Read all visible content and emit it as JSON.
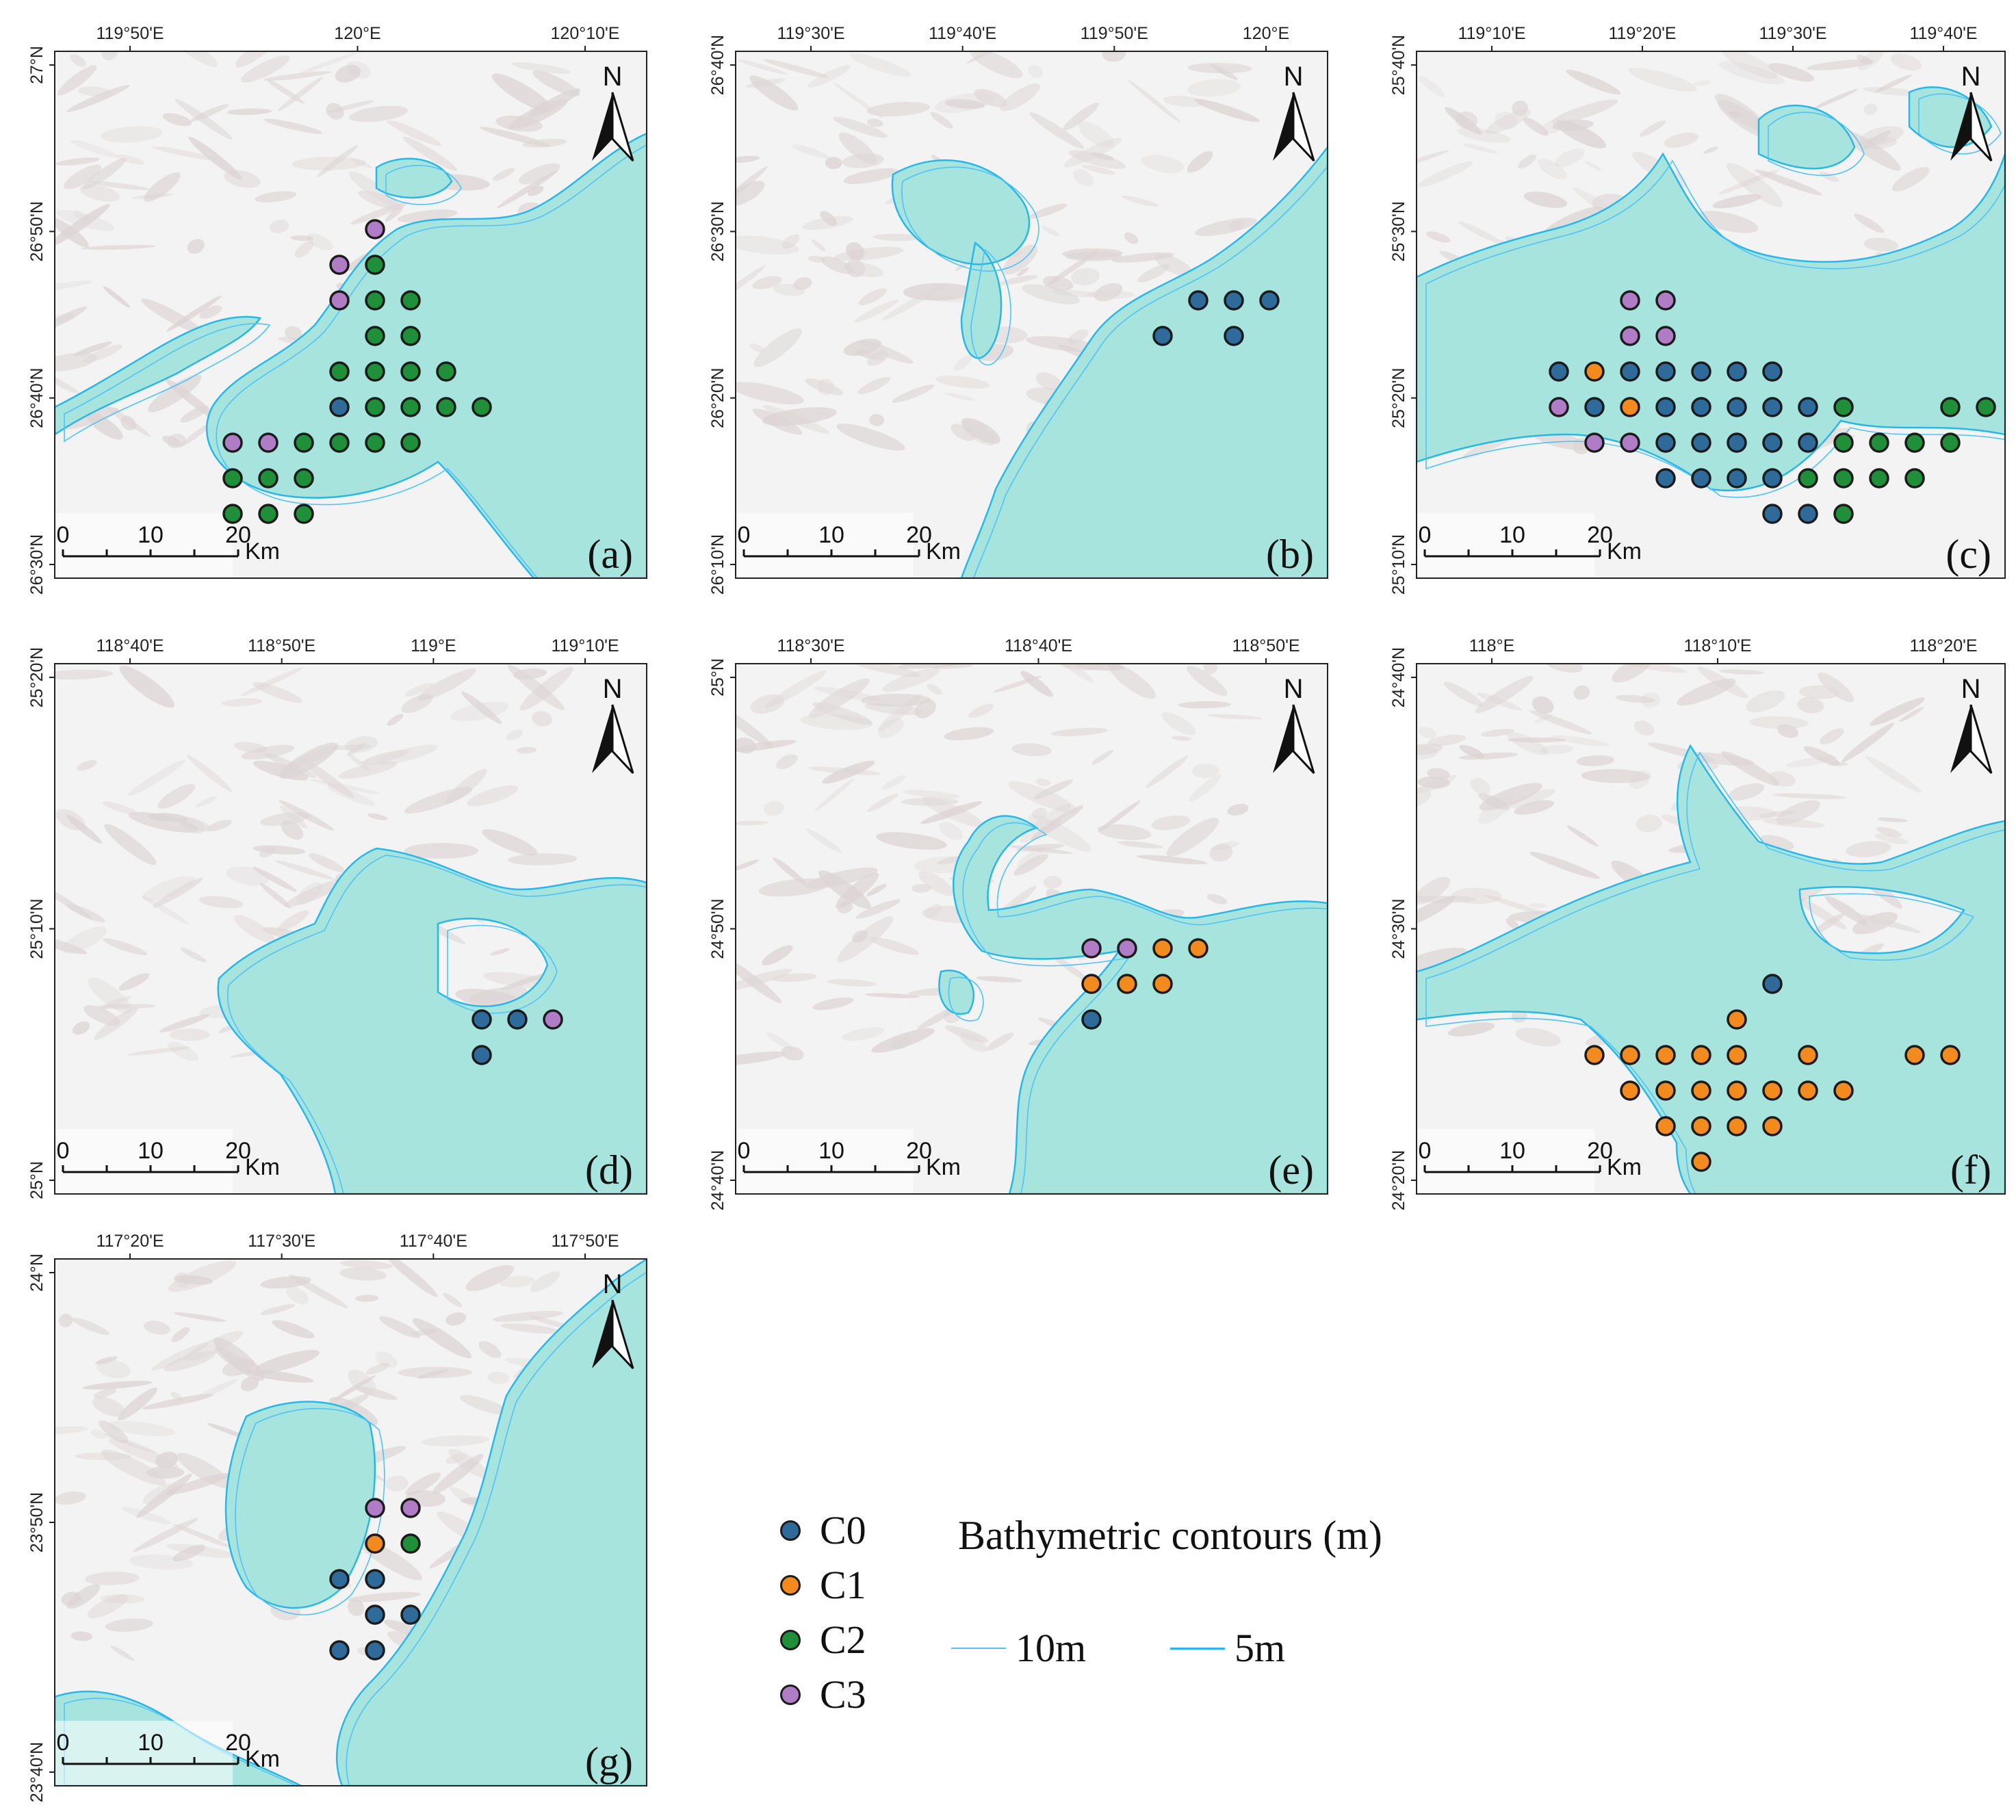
{
  "colors": {
    "C0": "#2f6b9a",
    "C1": "#f28a1e",
    "C2": "#1f8f3a",
    "C3": "#b07cc6",
    "sea": "#a8e4de",
    "contour": "#29b6e8",
    "land": "#f3f3f3",
    "relief": "#cbbcbc"
  },
  "scale_bar": {
    "ticks": [
      "0",
      "10",
      "20"
    ],
    "unit": "Km"
  },
  "north_label": "N",
  "legend": {
    "clusters": [
      "C0",
      "C1",
      "C2",
      "C3"
    ],
    "contour_title": "Bathymetric contours (m)",
    "contours": [
      "10m",
      "5m"
    ]
  },
  "panels": [
    {
      "id": "a",
      "letter": "(a)",
      "lon_labels": [
        "119°50'E",
        "120°E",
        "120°10'E"
      ],
      "lat_labels": [
        "27°N",
        "26°50'N",
        "26°40'N",
        "26°30'N"
      ],
      "points": [
        {
          "c": "C3",
          "x": 9,
          "y": 5
        },
        {
          "c": "C3",
          "x": 8,
          "y": 6
        },
        {
          "c": "C2",
          "x": 9,
          "y": 6
        },
        {
          "c": "C3",
          "x": 8,
          "y": 7
        },
        {
          "c": "C2",
          "x": 9,
          "y": 7
        },
        {
          "c": "C2",
          "x": 10,
          "y": 7
        },
        {
          "c": "C2",
          "x": 9,
          "y": 8
        },
        {
          "c": "C2",
          "x": 10,
          "y": 8
        },
        {
          "c": "C2",
          "x": 8,
          "y": 9
        },
        {
          "c": "C2",
          "x": 9,
          "y": 9
        },
        {
          "c": "C2",
          "x": 10,
          "y": 9
        },
        {
          "c": "C2",
          "x": 11,
          "y": 9
        },
        {
          "c": "C0",
          "x": 8,
          "y": 10
        },
        {
          "c": "C2",
          "x": 9,
          "y": 10
        },
        {
          "c": "C2",
          "x": 10,
          "y": 10
        },
        {
          "c": "C2",
          "x": 11,
          "y": 10
        },
        {
          "c": "C2",
          "x": 12,
          "y": 10
        },
        {
          "c": "C3",
          "x": 5,
          "y": 11
        },
        {
          "c": "C3",
          "x": 6,
          "y": 11
        },
        {
          "c": "C2",
          "x": 7,
          "y": 11
        },
        {
          "c": "C2",
          "x": 8,
          "y": 11
        },
        {
          "c": "C2",
          "x": 9,
          "y": 11
        },
        {
          "c": "C2",
          "x": 10,
          "y": 11
        },
        {
          "c": "C2",
          "x": 5,
          "y": 12
        },
        {
          "c": "C2",
          "x": 6,
          "y": 12
        },
        {
          "c": "C2",
          "x": 7,
          "y": 12
        },
        {
          "c": "C2",
          "x": 5,
          "y": 13
        },
        {
          "c": "C2",
          "x": 6,
          "y": 13
        },
        {
          "c": "C2",
          "x": 7,
          "y": 13
        }
      ]
    },
    {
      "id": "b",
      "letter": "(b)",
      "lon_labels": [
        "119°30'E",
        "119°40'E",
        "119°50'E",
        "120°E"
      ],
      "lat_labels": [
        "26°40'N",
        "26°30'N",
        "26°20'N",
        "26°10'N"
      ],
      "points": [
        {
          "c": "C0",
          "x": 13,
          "y": 7
        },
        {
          "c": "C0",
          "x": 14,
          "y": 7
        },
        {
          "c": "C0",
          "x": 15,
          "y": 7
        },
        {
          "c": "C0",
          "x": 12,
          "y": 8
        },
        {
          "c": "C0",
          "x": 14,
          "y": 8
        }
      ]
    },
    {
      "id": "c",
      "letter": "(c)",
      "lon_labels": [
        "119°10'E",
        "119°20'E",
        "119°30'E",
        "119°40'E"
      ],
      "lat_labels": [
        "25°40'N",
        "25°30'N",
        "25°20'N",
        "25°10'N"
      ],
      "points": [
        {
          "c": "C3",
          "x": 6,
          "y": 7
        },
        {
          "c": "C3",
          "x": 7,
          "y": 7
        },
        {
          "c": "C3",
          "x": 6,
          "y": 8
        },
        {
          "c": "C3",
          "x": 7,
          "y": 8
        },
        {
          "c": "C0",
          "x": 4,
          "y": 9
        },
        {
          "c": "C1",
          "x": 5,
          "y": 9
        },
        {
          "c": "C0",
          "x": 6,
          "y": 9
        },
        {
          "c": "C0",
          "x": 7,
          "y": 9
        },
        {
          "c": "C0",
          "x": 8,
          "y": 9
        },
        {
          "c": "C0",
          "x": 9,
          "y": 9
        },
        {
          "c": "C0",
          "x": 10,
          "y": 9
        },
        {
          "c": "C3",
          "x": 4,
          "y": 10
        },
        {
          "c": "C0",
          "x": 5,
          "y": 10
        },
        {
          "c": "C1",
          "x": 6,
          "y": 10
        },
        {
          "c": "C0",
          "x": 7,
          "y": 10
        },
        {
          "c": "C0",
          "x": 8,
          "y": 10
        },
        {
          "c": "C0",
          "x": 9,
          "y": 10
        },
        {
          "c": "C0",
          "x": 10,
          "y": 10
        },
        {
          "c": "C0",
          "x": 11,
          "y": 10
        },
        {
          "c": "C2",
          "x": 12,
          "y": 10
        },
        {
          "c": "C2",
          "x": 15,
          "y": 10
        },
        {
          "c": "C2",
          "x": 16,
          "y": 10
        },
        {
          "c": "C3",
          "x": 5,
          "y": 11
        },
        {
          "c": "C3",
          "x": 6,
          "y": 11
        },
        {
          "c": "C0",
          "x": 7,
          "y": 11
        },
        {
          "c": "C0",
          "x": 8,
          "y": 11
        },
        {
          "c": "C0",
          "x": 9,
          "y": 11
        },
        {
          "c": "C0",
          "x": 10,
          "y": 11
        },
        {
          "c": "C0",
          "x": 11,
          "y": 11
        },
        {
          "c": "C2",
          "x": 12,
          "y": 11
        },
        {
          "c": "C2",
          "x": 13,
          "y": 11
        },
        {
          "c": "C2",
          "x": 14,
          "y": 11
        },
        {
          "c": "C2",
          "x": 15,
          "y": 11
        },
        {
          "c": "C0",
          "x": 7,
          "y": 12
        },
        {
          "c": "C0",
          "x": 8,
          "y": 12
        },
        {
          "c": "C0",
          "x": 9,
          "y": 12
        },
        {
          "c": "C0",
          "x": 10,
          "y": 12
        },
        {
          "c": "C2",
          "x": 11,
          "y": 12
        },
        {
          "c": "C2",
          "x": 12,
          "y": 12
        },
        {
          "c": "C2",
          "x": 13,
          "y": 12
        },
        {
          "c": "C2",
          "x": 14,
          "y": 12
        },
        {
          "c": "C0",
          "x": 10,
          "y": 13
        },
        {
          "c": "C0",
          "x": 11,
          "y": 13
        },
        {
          "c": "C2",
          "x": 12,
          "y": 13
        }
      ]
    },
    {
      "id": "d",
      "letter": "(d)",
      "lon_labels": [
        "118°40'E",
        "118°50'E",
        "119°E",
        "119°10'E"
      ],
      "lat_labels": [
        "25°20'N",
        "25°10'N",
        "25°N"
      ],
      "points": [
        {
          "c": "C0",
          "x": 12,
          "y": 10
        },
        {
          "c": "C0",
          "x": 13,
          "y": 10
        },
        {
          "c": "C3",
          "x": 14,
          "y": 10
        },
        {
          "c": "C0",
          "x": 12,
          "y": 11
        }
      ]
    },
    {
      "id": "e",
      "letter": "(e)",
      "lon_labels": [
        "118°30'E",
        "118°40'E",
        "118°50'E"
      ],
      "lat_labels": [
        "25°N",
        "24°50'N",
        "24°40'N"
      ],
      "points": [
        {
          "c": "C3",
          "x": 10,
          "y": 8
        },
        {
          "c": "C3",
          "x": 11,
          "y": 8
        },
        {
          "c": "C1",
          "x": 12,
          "y": 8
        },
        {
          "c": "C1",
          "x": 13,
          "y": 8
        },
        {
          "c": "C1",
          "x": 10,
          "y": 9
        },
        {
          "c": "C1",
          "x": 11,
          "y": 9
        },
        {
          "c": "C1",
          "x": 12,
          "y": 9
        },
        {
          "c": "C0",
          "x": 10,
          "y": 10
        }
      ]
    },
    {
      "id": "f",
      "letter": "(f)",
      "lon_labels": [
        "118°E",
        "118°10'E",
        "118°20'E"
      ],
      "lat_labels": [
        "24°40'N",
        "24°30'N",
        "24°20'N"
      ],
      "points": [
        {
          "c": "C0",
          "x": 10,
          "y": 9
        },
        {
          "c": "C1",
          "x": 9,
          "y": 10
        },
        {
          "c": "C1",
          "x": 5,
          "y": 11
        },
        {
          "c": "C1",
          "x": 6,
          "y": 11
        },
        {
          "c": "C1",
          "x": 7,
          "y": 11
        },
        {
          "c": "C1",
          "x": 8,
          "y": 11
        },
        {
          "c": "C1",
          "x": 9,
          "y": 11
        },
        {
          "c": "C1",
          "x": 11,
          "y": 11
        },
        {
          "c": "C1",
          "x": 14,
          "y": 11
        },
        {
          "c": "C1",
          "x": 15,
          "y": 11
        },
        {
          "c": "C1",
          "x": 6,
          "y": 12
        },
        {
          "c": "C1",
          "x": 7,
          "y": 12
        },
        {
          "c": "C1",
          "x": 8,
          "y": 12
        },
        {
          "c": "C1",
          "x": 9,
          "y": 12
        },
        {
          "c": "C1",
          "x": 10,
          "y": 12
        },
        {
          "c": "C1",
          "x": 11,
          "y": 12
        },
        {
          "c": "C1",
          "x": 12,
          "y": 12
        },
        {
          "c": "C1",
          "x": 7,
          "y": 13
        },
        {
          "c": "C1",
          "x": 8,
          "y": 13
        },
        {
          "c": "C1",
          "x": 9,
          "y": 13
        },
        {
          "c": "C1",
          "x": 10,
          "y": 13
        },
        {
          "c": "C1",
          "x": 8,
          "y": 14
        }
      ]
    },
    {
      "id": "g",
      "letter": "(g)",
      "lon_labels": [
        "117°20'E",
        "117°30'E",
        "117°40'E",
        "117°50'E"
      ],
      "lat_labels": [
        "24°N",
        "23°50'N",
        "23°40'N"
      ],
      "points": [
        {
          "c": "C3",
          "x": 9,
          "y": 7
        },
        {
          "c": "C3",
          "x": 10,
          "y": 7
        },
        {
          "c": "C1",
          "x": 9,
          "y": 8
        },
        {
          "c": "C2",
          "x": 10,
          "y": 8
        },
        {
          "c": "C0",
          "x": 8,
          "y": 9
        },
        {
          "c": "C0",
          "x": 9,
          "y": 9
        },
        {
          "c": "C0",
          "x": 9,
          "y": 10
        },
        {
          "c": "C0",
          "x": 10,
          "y": 10
        },
        {
          "c": "C0",
          "x": 8,
          "y": 11
        },
        {
          "c": "C0",
          "x": 9,
          "y": 11
        }
      ]
    }
  ]
}
